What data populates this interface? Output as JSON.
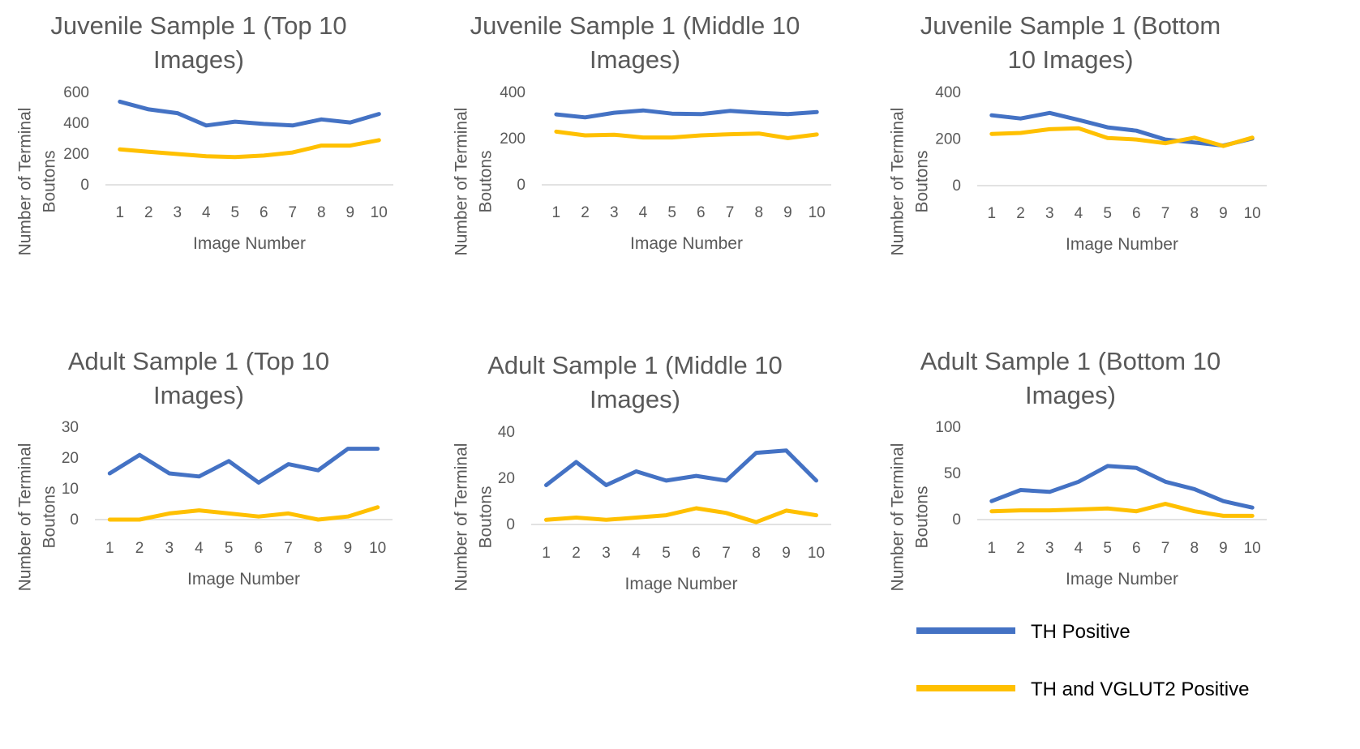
{
  "colors": {
    "th": "#4472C4",
    "th_vglut2": "#FFC000",
    "axis": "#D9D9D9",
    "text": "#595959"
  },
  "legend": {
    "placement": "bottom-right",
    "items": [
      {
        "label": "TH Positive",
        "color": "#4472C4"
      },
      {
        "label": "TH and VGLUT2 Positive",
        "color": "#FFC000"
      }
    ]
  },
  "chart_data": [
    {
      "type": "line",
      "title_lines": [
        "Juvenile Sample 1 (Top 10",
        "Images)"
      ],
      "xlabel": "Image Number",
      "ylabel_lines": [
        "Number of Terminal",
        "Boutons"
      ],
      "categories": [
        "1",
        "2",
        "3",
        "4",
        "5",
        "6",
        "7",
        "8",
        "9",
        "10"
      ],
      "yticks": [
        0,
        200,
        400,
        600
      ],
      "ylim": [
        0,
        600
      ],
      "grid": false,
      "series": [
        {
          "name": "TH Positive",
          "color": "#4472C4",
          "values": [
            540,
            490,
            465,
            385,
            410,
            395,
            385,
            425,
            405,
            460
          ]
        },
        {
          "name": "TH and VGLUT2 Positive",
          "color": "#FFC000",
          "values": [
            230,
            215,
            200,
            185,
            180,
            190,
            210,
            255,
            255,
            290
          ]
        }
      ]
    },
    {
      "type": "line",
      "title_lines": [
        "Juvenile Sample 1 (Middle 10",
        "Images)"
      ],
      "xlabel": "Image Number",
      "ylabel_lines": [
        "Number of Terminal",
        "Boutons"
      ],
      "categories": [
        "1",
        "2",
        "3",
        "4",
        "5",
        "6",
        "7",
        "8",
        "9",
        "10"
      ],
      "yticks": [
        0,
        200,
        400
      ],
      "ylim": [
        0,
        400
      ],
      "grid": false,
      "series": [
        {
          "name": "TH Positive",
          "color": "#4472C4",
          "values": [
            305,
            292,
            312,
            322,
            308,
            306,
            320,
            312,
            306,
            315
          ]
        },
        {
          "name": "TH and VGLUT2 Positive",
          "color": "#FFC000",
          "values": [
            230,
            214,
            217,
            205,
            205,
            214,
            219,
            222,
            202,
            218
          ]
        }
      ]
    },
    {
      "type": "line",
      "title_lines": [
        "Juvenile Sample 1 (Bottom",
        "10 Images)"
      ],
      "xlabel": "Image Number",
      "ylabel_lines": [
        "Number of Terminal",
        "Boutons"
      ],
      "categories": [
        "1",
        "2",
        "3",
        "4",
        "5",
        "6",
        "7",
        "8",
        "9",
        "10"
      ],
      "yticks": [
        0,
        200,
        400
      ],
      "ylim": [
        0,
        400
      ],
      "grid": false,
      "series": [
        {
          "name": "TH Positive",
          "color": "#4472C4",
          "values": [
            302,
            288,
            312,
            282,
            250,
            236,
            198,
            185,
            172,
            202
          ]
        },
        {
          "name": "TH and VGLUT2 Positive",
          "color": "#FFC000",
          "values": [
            222,
            226,
            242,
            246,
            204,
            198,
            182,
            206,
            170,
            206
          ]
        }
      ]
    },
    {
      "type": "line",
      "title_lines": [
        "Adult Sample 1 (Top 10",
        "Images)"
      ],
      "xlabel": "Image Number",
      "ylabel_lines": [
        "Number of Terminal",
        "Boutons"
      ],
      "categories": [
        "1",
        "2",
        "3",
        "4",
        "5",
        "6",
        "7",
        "8",
        "9",
        "10"
      ],
      "yticks": [
        0,
        10,
        20,
        30
      ],
      "ylim": [
        0,
        30
      ],
      "grid": false,
      "series": [
        {
          "name": "TH Positive",
          "color": "#4472C4",
          "values": [
            15,
            21,
            15,
            14,
            19,
            12,
            18,
            16,
            23,
            23
          ]
        },
        {
          "name": "TH and VGLUT2 Positive",
          "color": "#FFC000",
          "values": [
            0,
            0,
            2,
            3,
            2,
            1,
            2,
            0,
            1,
            4
          ]
        }
      ]
    },
    {
      "type": "line",
      "title_lines": [
        "Adult Sample 1 (Middle 10",
        "Images)"
      ],
      "xlabel": "Image Number",
      "ylabel_lines": [
        "Number of Terminal",
        "Boutons"
      ],
      "categories": [
        "1",
        "2",
        "3",
        "4",
        "5",
        "6",
        "7",
        "8",
        "9",
        "10"
      ],
      "yticks": [
        0,
        20,
        40
      ],
      "ylim": [
        0,
        40
      ],
      "grid": false,
      "series": [
        {
          "name": "TH Positive",
          "color": "#4472C4",
          "values": [
            17,
            27,
            17,
            23,
            19,
            21,
            19,
            31,
            32,
            19
          ]
        },
        {
          "name": "TH and VGLUT2 Positive",
          "color": "#FFC000",
          "values": [
            2,
            3,
            2,
            3,
            4,
            7,
            5,
            1,
            6,
            4
          ]
        }
      ]
    },
    {
      "type": "line",
      "title_lines": [
        "Adult Sample 1 (Bottom 10",
        "Images)"
      ],
      "xlabel": "Image Number",
      "ylabel_lines": [
        "Number of Terminal",
        "Boutons"
      ],
      "categories": [
        "1",
        "2",
        "3",
        "4",
        "5",
        "6",
        "7",
        "8",
        "9",
        "10"
      ],
      "yticks": [
        0,
        50,
        100
      ],
      "ylim": [
        0,
        100
      ],
      "grid": false,
      "series": [
        {
          "name": "TH Positive",
          "color": "#4472C4",
          "values": [
            20,
            32,
            30,
            41,
            58,
            56,
            41,
            33,
            20,
            13
          ]
        },
        {
          "name": "TH and VGLUT2 Positive",
          "color": "#FFC000",
          "values": [
            9,
            10,
            10,
            11,
            12,
            9,
            17,
            9,
            4,
            4
          ]
        }
      ]
    }
  ]
}
